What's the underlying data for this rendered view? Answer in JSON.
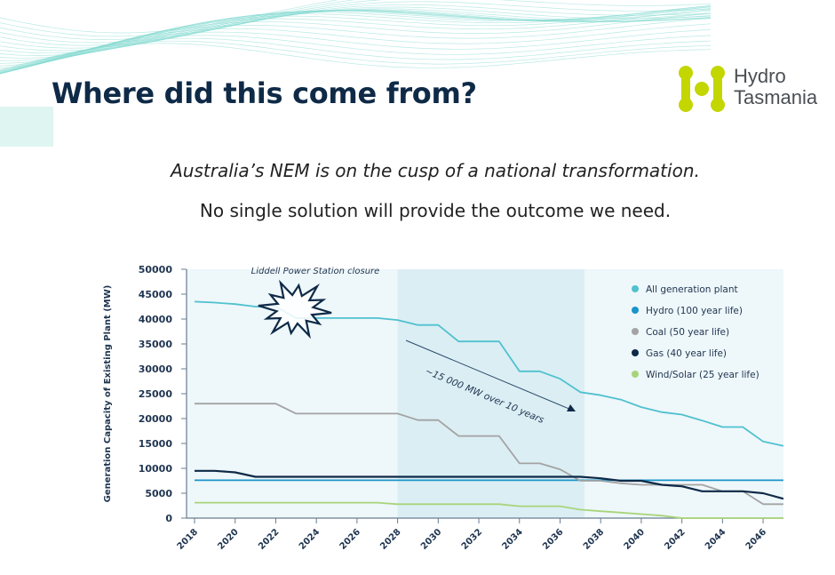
{
  "slide": {
    "title": "Where did this come from?",
    "subtitle_1": "Australia’s NEM is on the cusp of a national transformation.",
    "subtitle_2": "No single solution will provide the outcome we need.",
    "logo": {
      "line1": "Hydro",
      "line2": "Tasmania",
      "color": "#c3d600"
    }
  },
  "chart_data": {
    "type": "line",
    "title": "",
    "xlabel": "",
    "ylabel": "Generation Capacity of Existing Plant (MW)",
    "xlim": [
      2018,
      2047
    ],
    "ylim": [
      0,
      50000
    ],
    "yticks": [
      0,
      5000,
      10000,
      15000,
      20000,
      25000,
      30000,
      35000,
      40000,
      45000,
      50000
    ],
    "xticks": [
      2018,
      2020,
      2022,
      2024,
      2026,
      2028,
      2030,
      2032,
      2034,
      2036,
      2038,
      2040,
      2042,
      2044,
      2046
    ],
    "highlight_range": [
      2028,
      2037.2
    ],
    "legend_position": "top-right",
    "annotations": [
      {
        "text": "Liddell Power Station closure",
        "x": 2022.5,
        "y": 50000
      },
      {
        "text": "~15 000 MW over 10 years",
        "x": 2032,
        "y": 28000
      }
    ],
    "x": [
      2018,
      2019,
      2020,
      2021,
      2022,
      2023,
      2024,
      2025,
      2026,
      2027,
      2028,
      2029,
      2030,
      2031,
      2032,
      2033,
      2034,
      2035,
      2036,
      2037,
      2038,
      2039,
      2040,
      2041,
      2042,
      2043,
      2044,
      2045,
      2046,
      2047
    ],
    "series": [
      {
        "name": "All generation plant",
        "color": "#4fc1cf",
        "values": [
          43500,
          43300,
          43000,
          42500,
          42500,
          40200,
          40200,
          40200,
          40200,
          40200,
          39800,
          38800,
          38800,
          35500,
          35500,
          35500,
          29500,
          29500,
          28000,
          25300,
          24700,
          23800,
          22300,
          21300,
          20800,
          19600,
          18300,
          18300,
          15400,
          14500
        ]
      },
      {
        "name": "Hydro (100 year life)",
        "color": "#1a94c9",
        "values": [
          7600,
          7600,
          7600,
          7600,
          7600,
          7600,
          7600,
          7600,
          7600,
          7600,
          7600,
          7600,
          7600,
          7600,
          7600,
          7600,
          7600,
          7600,
          7600,
          7600,
          7600,
          7600,
          7600,
          7600,
          7600,
          7600,
          7600,
          7600,
          7600,
          7600
        ]
      },
      {
        "name": "Coal (50 year life)",
        "color": "#a3a3a3",
        "values": [
          23000,
          23000,
          23000,
          23000,
          23000,
          21000,
          21000,
          21000,
          21000,
          21000,
          21000,
          19700,
          19700,
          16500,
          16500,
          16500,
          11000,
          11000,
          9800,
          7500,
          7500,
          7000,
          6700,
          6700,
          6700,
          6700,
          5400,
          5400,
          2800,
          2800
        ]
      },
      {
        "name": "Gas (40 year life)",
        "color": "#0e2a47",
        "values": [
          9500,
          9500,
          9200,
          8300,
          8300,
          8300,
          8300,
          8300,
          8300,
          8300,
          8300,
          8300,
          8300,
          8300,
          8300,
          8300,
          8300,
          8300,
          8300,
          8300,
          8000,
          7500,
          7500,
          6700,
          6400,
          5400,
          5400,
          5400,
          5000,
          3900
        ]
      },
      {
        "name": "Wind/Solar (25 year life)",
        "color": "#a8d47a",
        "values": [
          3100,
          3100,
          3100,
          3100,
          3100,
          3100,
          3100,
          3100,
          3100,
          3100,
          2800,
          2800,
          2800,
          2800,
          2800,
          2800,
          2400,
          2400,
          2400,
          1700,
          1400,
          1100,
          800,
          500,
          0,
          0,
          0,
          0,
          0,
          0
        ]
      }
    ]
  }
}
